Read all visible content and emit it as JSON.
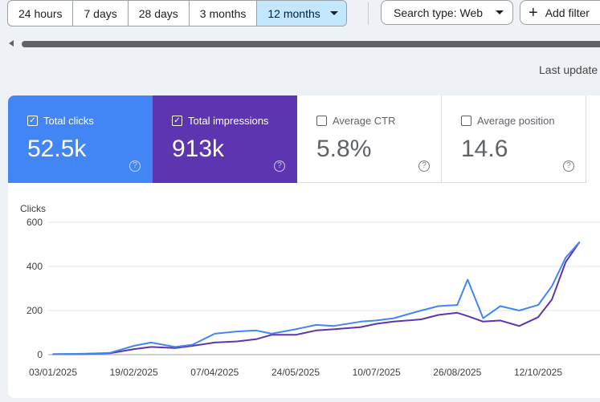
{
  "toolbar": {
    "ranges": [
      "24 hours",
      "7 days",
      "28 days",
      "3 months",
      "12 months"
    ],
    "active_range": "12 months",
    "search_type": "Search type: Web",
    "add_filter": "Add filter"
  },
  "status": {
    "last_updated": "Last update"
  },
  "metrics": {
    "clicks": {
      "label": "Total clicks",
      "value": "52.5k",
      "checked": true,
      "color": "#4285f4"
    },
    "impressions": {
      "label": "Total impressions",
      "value": "913k",
      "checked": true,
      "color": "#5e35b1"
    },
    "ctr": {
      "label": "Average CTR",
      "value": "5.8%",
      "checked": false
    },
    "position": {
      "label": "Average position",
      "value": "14.6",
      "checked": false
    }
  },
  "icons": {
    "help": "help-circle-icon",
    "check": "checkbox-checked-icon",
    "dropdown": "chevron-down-icon",
    "plus": "plus-icon"
  },
  "chart_data": {
    "type": "line",
    "ylabel": "Clicks",
    "ylim": [
      0,
      600
    ],
    "yticks": [
      "600",
      "400",
      "200",
      "0"
    ],
    "xticks": [
      "03/01/2025",
      "19/02/2025",
      "07/04/2025",
      "24/05/2025",
      "10/07/2025",
      "26/08/2025",
      "12/10/2025"
    ],
    "x": [
      "03/01/2025",
      "20/01/2025",
      "05/02/2025",
      "19/02/2025",
      "01/03/2025",
      "15/03/2025",
      "25/03/2025",
      "07/04/2025",
      "20/04/2025",
      "01/05/2025",
      "10/05/2025",
      "24/05/2025",
      "05/06/2025",
      "15/06/2025",
      "01/07/2025",
      "10/07/2025",
      "20/07/2025",
      "05/08/2025",
      "15/08/2025",
      "26/08/2025",
      "01/09/2025",
      "10/09/2025",
      "20/09/2025",
      "01/10/2025",
      "12/10/2025",
      "20/10/2025",
      "28/10/2025",
      "05/11/2025"
    ],
    "grid": true,
    "legend": "none",
    "series": [
      {
        "name": "Total clicks",
        "color": "#4285f4",
        "values": [
          2,
          4,
          8,
          40,
          55,
          35,
          45,
          95,
          105,
          110,
          95,
          115,
          135,
          130,
          150,
          155,
          165,
          200,
          220,
          225,
          340,
          165,
          220,
          200,
          225,
          310,
          440,
          510
        ]
      },
      {
        "name": "Total impressions",
        "color": "#5e35b1",
        "values": [
          2,
          3,
          6,
          25,
          35,
          30,
          40,
          55,
          60,
          70,
          90,
          90,
          110,
          115,
          125,
          140,
          150,
          160,
          180,
          190,
          175,
          150,
          155,
          130,
          170,
          250,
          420,
          510
        ]
      }
    ]
  }
}
